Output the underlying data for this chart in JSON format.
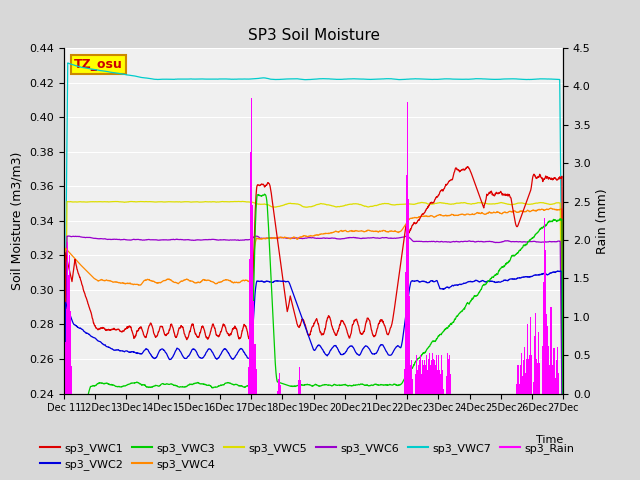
{
  "title": "SP3 Soil Moisture",
  "ylabel_left": "Soil Moisture (m3/m3)",
  "ylabel_right": "Rain (mm)",
  "xlabel": "Time",
  "ylim_left": [
    0.24,
    0.44
  ],
  "ylim_right": [
    0.0,
    4.5
  ],
  "background_color": "#d8d8d8",
  "plot_bg_color": "#f0f0f0",
  "colors": {
    "VWC1": "#dd0000",
    "VWC2": "#0000dd",
    "VWC3": "#00cc00",
    "VWC4": "#ff8800",
    "VWC5": "#dddd00",
    "VWC6": "#9900cc",
    "VWC7": "#00cccc",
    "Rain": "#ff00ff"
  },
  "tz_label": "TZ_osu",
  "tz_bg": "#ffff00",
  "tz_border": "#cc8800",
  "grid_color": "#cccccc",
  "yticks_left": [
    0.24,
    0.26,
    0.28,
    0.3,
    0.32,
    0.34,
    0.36,
    0.38,
    0.4,
    0.42,
    0.44
  ],
  "yticks_right": [
    0.0,
    0.5,
    1.0,
    1.5,
    2.0,
    2.5,
    3.0,
    3.5,
    4.0,
    4.5
  ]
}
